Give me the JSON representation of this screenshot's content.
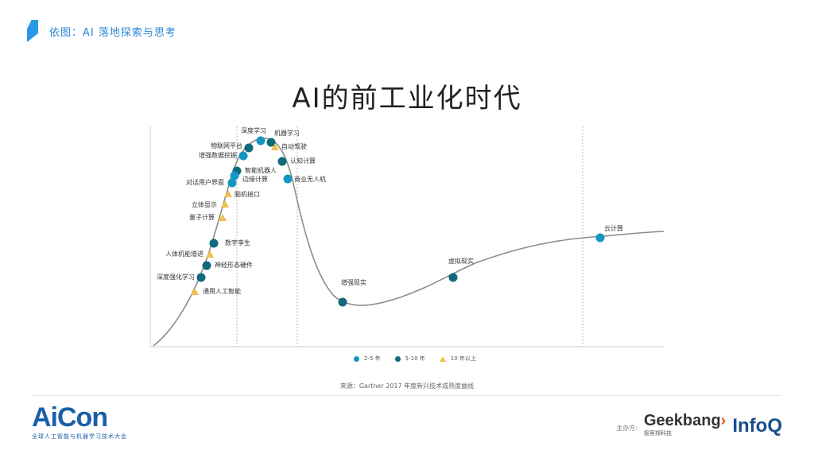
{
  "header": {
    "text": "依图：AI 落地探索与思考"
  },
  "title": "AI的前工业化时代",
  "colors": {
    "teal": "#1596c2",
    "dark_teal": "#0f6b7c",
    "yellow": "#f0bf4c",
    "accent": "#2a98e6"
  },
  "chart_data": {
    "type": "scatter",
    "points": [
      {
        "label": "深度学习",
        "cat": "t2_5"
      },
      {
        "label": "机器学习",
        "cat": "t5_10"
      },
      {
        "label": "自动驾驶",
        "cat": "t10"
      },
      {
        "label": "物联网平台",
        "cat": "t5_10"
      },
      {
        "label": "增强数据挖掘",
        "cat": "t2_5"
      },
      {
        "label": "认知计算",
        "cat": "t5_10"
      },
      {
        "label": "智能机器人",
        "cat": "t5_10"
      },
      {
        "label": "边缘计算",
        "cat": "t2_5"
      },
      {
        "label": "对话用户界面",
        "cat": "t2_5"
      },
      {
        "label": "商业无人机",
        "cat": "t2_5"
      },
      {
        "label": "脑机接口",
        "cat": "t10"
      },
      {
        "label": "立体显示",
        "cat": "t10"
      },
      {
        "label": "量子计算",
        "cat": "t10"
      },
      {
        "label": "数字孪生",
        "cat": "t5_10"
      },
      {
        "label": "人体机能增进",
        "cat": "t10"
      },
      {
        "label": "神经形态硬件",
        "cat": "t5_10"
      },
      {
        "label": "深度强化学习",
        "cat": "t5_10"
      },
      {
        "label": "通用人工智能",
        "cat": "t10"
      },
      {
        "label": "增强现实",
        "cat": "t5_10"
      },
      {
        "label": "虚拟现实",
        "cat": "t5_10"
      },
      {
        "label": "云计算",
        "cat": "t2_5"
      }
    ],
    "legend": [
      {
        "key": "t2_5",
        "label": "2-5 年"
      },
      {
        "key": "t5_10",
        "label": "5-10 年"
      },
      {
        "key": "t10",
        "label": "10 年以上"
      }
    ]
  },
  "source": "来源：Gartner 2017 年度新兴技术成熟度曲线",
  "footer": {
    "brand": "AiCon",
    "brand_sub": "全球人工智能与机器学习技术大会",
    "sponsor_label": "主办方:",
    "geekbang": "Geekbang",
    "geekbang_x": "›",
    "geekbang_sub": "极客邦科技",
    "infoq": "InfoQ"
  }
}
